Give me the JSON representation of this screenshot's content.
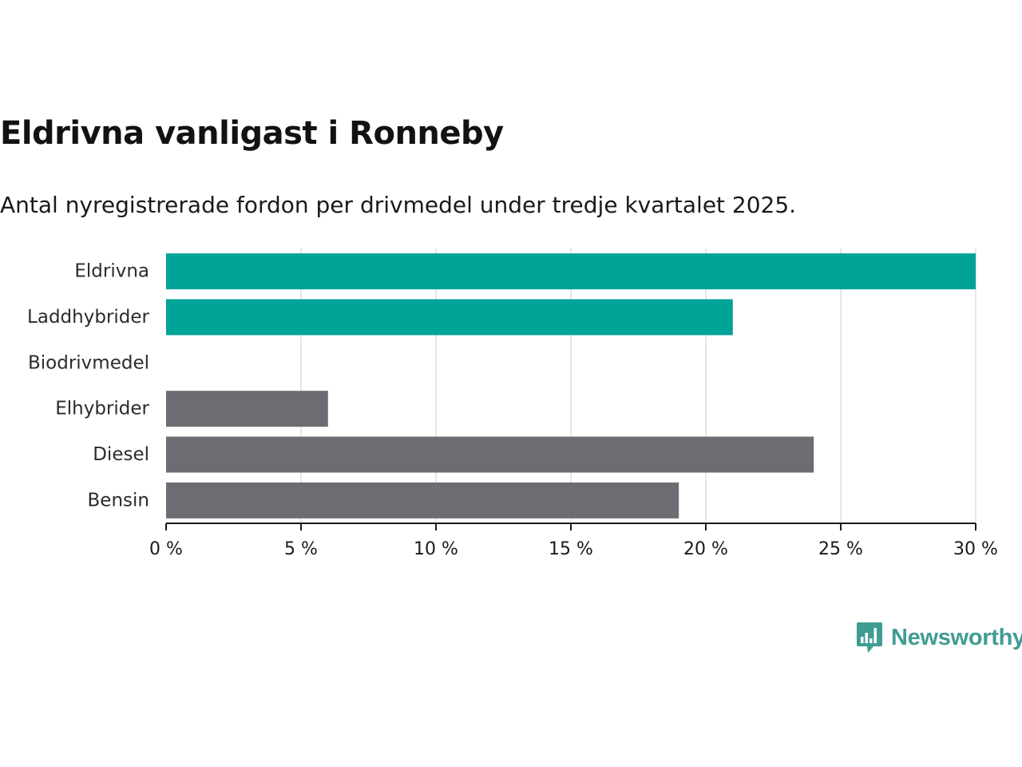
{
  "chart_data": {
    "type": "bar",
    "orientation": "horizontal",
    "title": "Eldrivna vanligast i Ronneby",
    "subtitle": "Antal nyregistrerade fordon per drivmedel under tredje kvartalet 2025.",
    "categories": [
      "Eldrivna",
      "Laddhybrider",
      "Biodrivmedel",
      "Elhybrider",
      "Diesel",
      "Bensin"
    ],
    "values": [
      30,
      21,
      0,
      6,
      24,
      19
    ],
    "bar_colors": [
      "#00a398",
      "#00a398",
      "#00a398",
      "#6e6c72",
      "#6e6c72",
      "#6e6c72"
    ],
    "xlabel": "",
    "ylabel": "",
    "xlim": [
      0,
      30
    ],
    "ticks": [
      0,
      5,
      10,
      15,
      20,
      25,
      30
    ],
    "tick_labels": [
      "0 %",
      "5 %",
      "10 %",
      "15 %",
      "20 %",
      "25 %",
      "30 %"
    ],
    "grid": true,
    "legend": "none"
  },
  "brand": {
    "name": "Newsworthy",
    "color": "#3f9c93"
  }
}
